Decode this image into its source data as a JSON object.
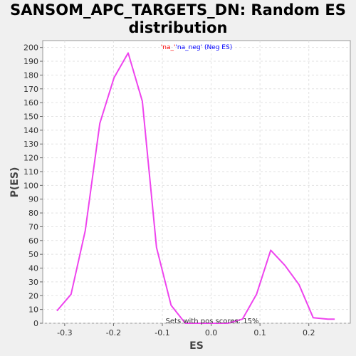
{
  "chart_data": {
    "type": "line",
    "title_line1": "SANSOM_APC_TARGETS_DN: Random ES",
    "title_line2": "distribution",
    "xlabel": "ES",
    "ylabel": "P(ES)",
    "xlim": [
      -0.345,
      0.285
    ],
    "ylim": [
      0,
      205
    ],
    "xticks": [
      -0.3,
      -0.2,
      -0.1,
      0.0,
      0.1,
      0.2
    ],
    "xtick_labels": [
      "-0.3",
      "-0.2",
      "-0.1",
      "0.0",
      "0.1",
      "0.2"
    ],
    "yticks": [
      0,
      10,
      20,
      30,
      40,
      50,
      60,
      70,
      80,
      90,
      100,
      110,
      120,
      130,
      140,
      150,
      160,
      170,
      180,
      190,
      200
    ],
    "grid": true,
    "legend": {
      "placement": "top-center",
      "parts": [
        {
          "text": "'na_'",
          "color": "#ff0000"
        },
        {
          "text": "'na_neg'",
          "color": "#0000ff"
        },
        {
          "text": " (Neg ES)",
          "color": "#0000ff"
        }
      ]
    },
    "annotation": "Sets with pos scores: 15%",
    "series": [
      {
        "color": "#ee44ee",
        "x": [
          -0.316,
          -0.287,
          -0.258,
          -0.228,
          -0.199,
          -0.17,
          -0.141,
          -0.112,
          -0.082,
          -0.053,
          -0.024,
          0.005,
          0.034,
          0.064,
          0.093,
          0.122,
          0.151,
          0.18,
          0.209,
          0.239,
          0.253
        ],
        "y": [
          9,
          21,
          67,
          145,
          178,
          196,
          161,
          55,
          13,
          0,
          0,
          0,
          0,
          3,
          21,
          53,
          42,
          28,
          4,
          3,
          3
        ]
      }
    ]
  }
}
